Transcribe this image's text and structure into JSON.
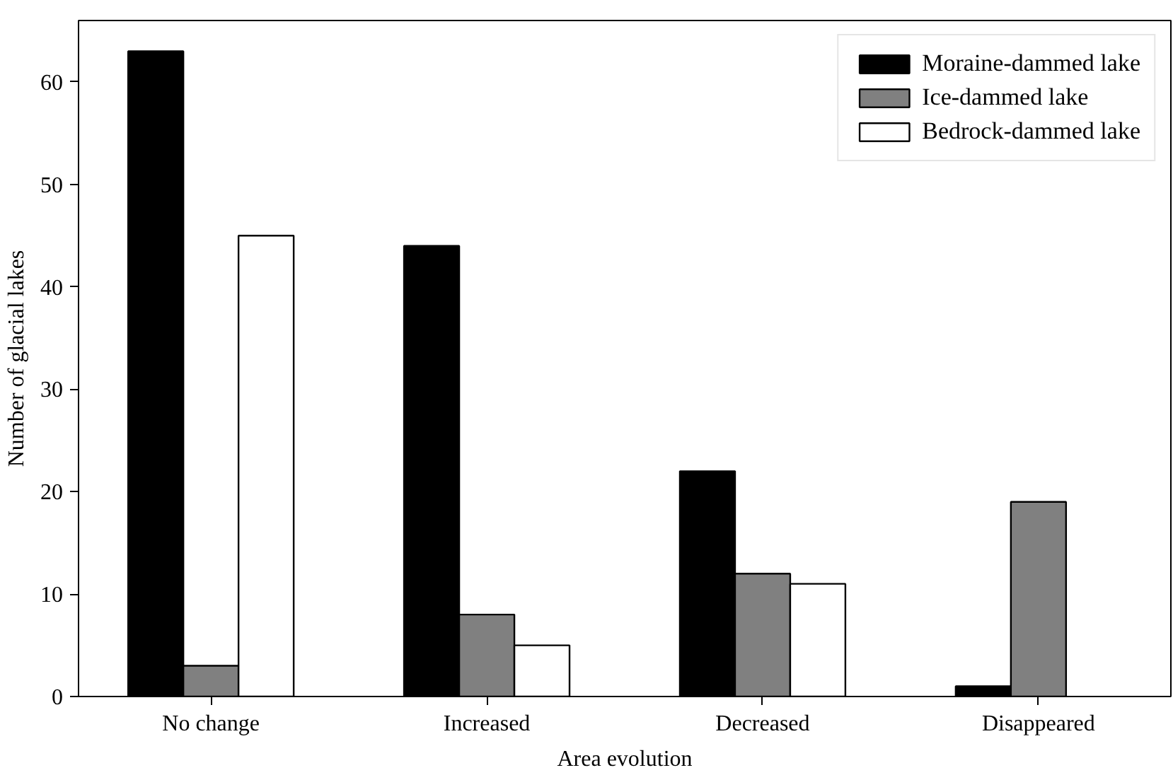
{
  "chart_data": {
    "type": "bar",
    "xlabel": "Area evolution",
    "ylabel": "Number of glacial lakes",
    "categories": [
      "No change",
      "Increased",
      "Decreased",
      "Disappeared"
    ],
    "series": [
      {
        "name": "Moraine-dammed lake",
        "color": "#000000",
        "values": [
          63,
          44,
          22,
          1
        ]
      },
      {
        "name": "Ice-dammed lake",
        "color": "#808080",
        "values": [
          3,
          8,
          12,
          19
        ]
      },
      {
        "name": "Bedrock-dammed lake",
        "color": "#ffffff",
        "values": [
          45,
          5,
          11,
          null
        ]
      }
    ],
    "ylim": [
      0,
      66
    ],
    "yticks": [
      0,
      10,
      20,
      30,
      40,
      50,
      60
    ],
    "grid": false,
    "legend": "top right"
  }
}
